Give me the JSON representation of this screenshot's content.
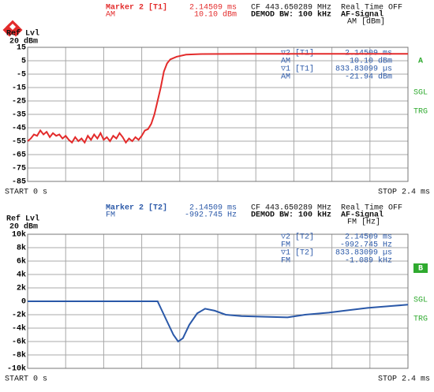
{
  "chart_data": [
    {
      "type": "line",
      "texts": [
        "Ref Lvl",
        "20 dBm",
        "Marker 2 [T1]",
        "AM",
        "2.14509 ms",
        "10.10 dBm",
        "CF 443.650289 MHz",
        "DEMOD BW: 100 kHz",
        "Real Time OFF",
        "AF-Signal",
        "AM [dBm]",
        "▽2 [T1]",
        "2.14509 ms",
        "AM",
        "10.10 dBm",
        "▽1 [T1]",
        "833.83099 µs",
        "AM",
        "-21.94 dBm",
        "A",
        "SGL",
        "TRG",
        "START 0 s",
        "STOP 2.4 ms"
      ],
      "color": "#e32b2b",
      "xlim": [
        0,
        2.4
      ],
      "ylim": [
        -85,
        15
      ],
      "yticks": [
        15,
        5,
        -5,
        -15,
        -25,
        -35,
        -45,
        -55,
        -65,
        -75,
        -85
      ],
      "grid": true,
      "x": [
        0,
        0.02,
        0.04,
        0.06,
        0.08,
        0.1,
        0.12,
        0.14,
        0.16,
        0.18,
        0.2,
        0.22,
        0.24,
        0.26,
        0.28,
        0.3,
        0.32,
        0.34,
        0.36,
        0.38,
        0.4,
        0.42,
        0.44,
        0.46,
        0.48,
        0.5,
        0.52,
        0.54,
        0.56,
        0.58,
        0.6,
        0.62,
        0.64,
        0.66,
        0.68,
        0.7,
        0.72,
        0.74,
        0.76,
        0.78,
        0.8,
        0.82,
        0.84,
        0.86,
        0.88,
        0.9,
        0.94,
        1.0,
        1.1,
        1.4,
        1.8,
        2.2,
        2.4
      ],
      "values": [
        -55,
        -53,
        -50,
        -51,
        -47,
        -50,
        -48,
        -52,
        -49,
        -51,
        -50,
        -53,
        -51,
        -54,
        -56,
        -52,
        -55,
        -53,
        -56,
        -51,
        -54,
        -50,
        -53,
        -49,
        -54,
        -52,
        -55,
        -51,
        -53,
        -49,
        -52,
        -56,
        -53,
        -55,
        -52,
        -54,
        -51,
        -47,
        -46,
        -42,
        -35,
        -25,
        -15,
        -3,
        3,
        6,
        8,
        9.5,
        10,
        10.1,
        10.1,
        10.1,
        10.1
      ]
    },
    {
      "type": "line",
      "texts": [
        "Ref Lvl",
        "20 dBm",
        "Marker 2 [T2]",
        "FM",
        "2.14509 ms",
        "-992.745 Hz",
        "CF 443.650289 MHz",
        "DEMOD BW: 100 kHz",
        "Real Time OFF",
        "AF-Signal",
        "FM [Hz]",
        "▽2 [T2]",
        "2.14509 ms",
        "FM",
        "-992.745 Hz",
        "▽1 [T2]",
        "833.83099 µs",
        "FM",
        "-1.089 kHz",
        "B",
        "SGL",
        "TRG",
        "START 0 s",
        "STOP 2.4 ms"
      ],
      "color": "#2a58a8",
      "xlim": [
        0,
        2.4
      ],
      "ylim": [
        -10000,
        10000
      ],
      "yticks": [
        {
          "value": 10000,
          "label": "10k"
        },
        {
          "value": 8000,
          "label": "8k"
        },
        {
          "value": 6000,
          "label": "6k"
        },
        {
          "value": 4000,
          "label": "4k"
        },
        {
          "value": 2000,
          "label": "2k"
        },
        0,
        {
          "value": -2000,
          "label": "-2k"
        },
        {
          "value": -4000,
          "label": "-4k"
        },
        {
          "value": -6000,
          "label": "-6k"
        },
        {
          "value": -8000,
          "label": "-8k"
        },
        {
          "value": -10000,
          "label": "-10k"
        }
      ],
      "grid": true,
      "x": [
        0,
        0.4,
        0.82,
        0.84,
        0.88,
        0.92,
        0.95,
        0.98,
        1.02,
        1.07,
        1.12,
        1.18,
        1.25,
        1.35,
        1.5,
        1.64,
        1.75,
        1.9,
        2.0,
        2.145,
        2.3,
        2.4
      ],
      "values": [
        0,
        0,
        0,
        -1000,
        -3000,
        -5000,
        -6000,
        -5500,
        -3500,
        -1800,
        -1100,
        -1400,
        -2000,
        -2200,
        -2300,
        -2400,
        -2000,
        -1700,
        -1400,
        -993,
        -700,
        -500
      ]
    }
  ]
}
